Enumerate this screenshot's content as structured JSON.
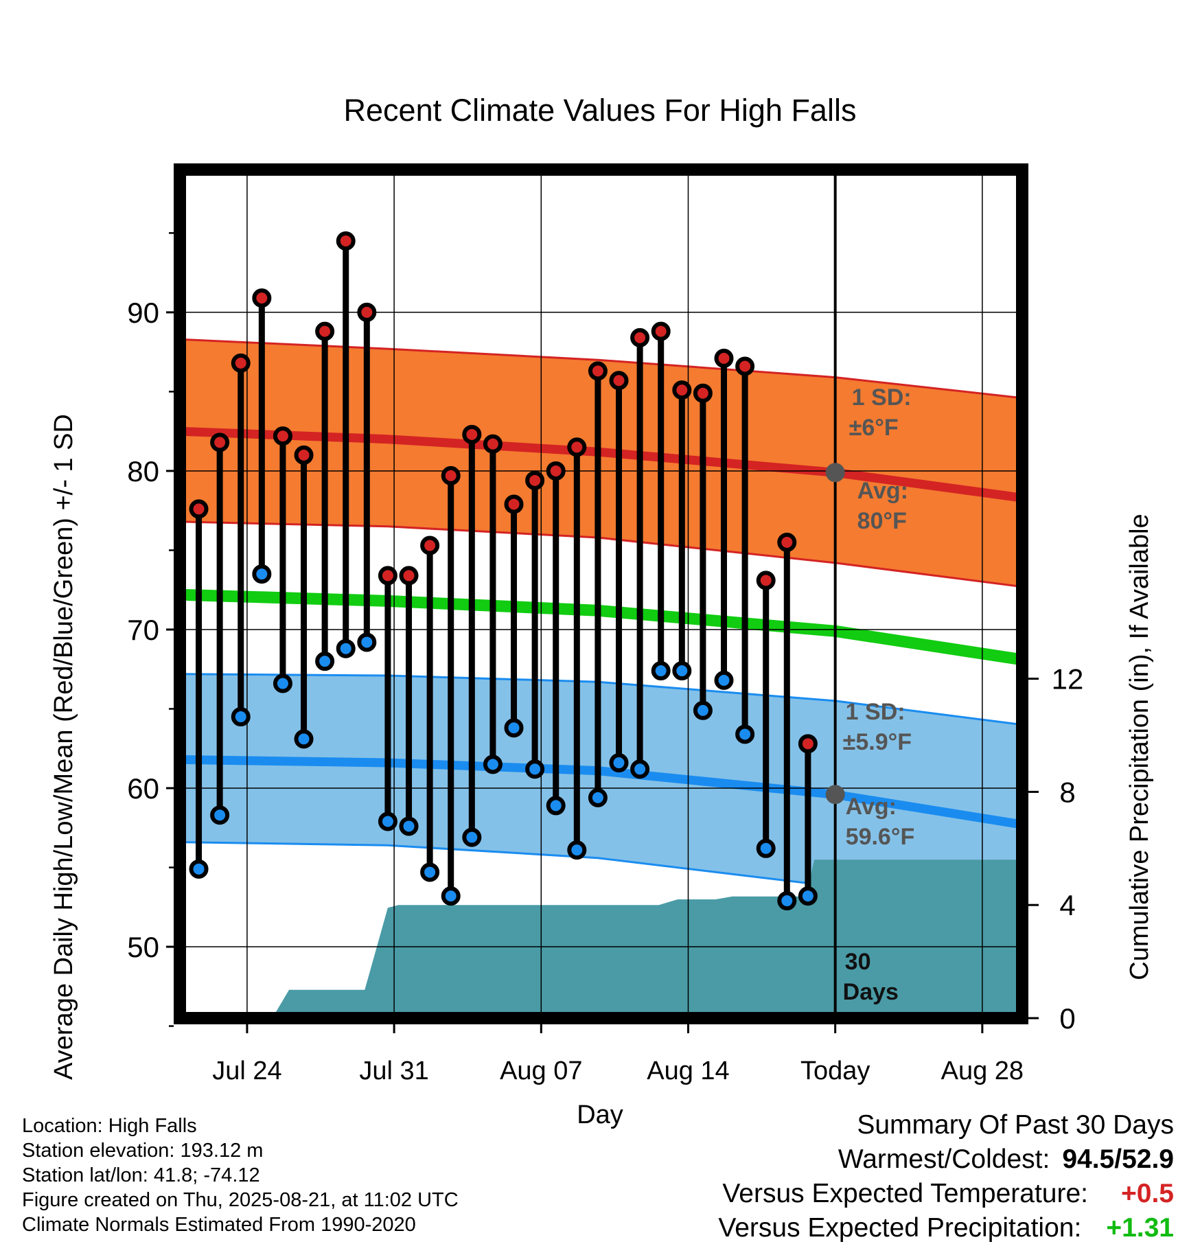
{
  "chart_data": {
    "type": "line",
    "title": "Recent Climate Values For High Falls",
    "xlabel": "Day",
    "ylabel": "Average Daily High/Low/Mean (Red/Blue/Green) +/- 1 SD",
    "y2label": "Cumulative Precipitation (in), If Available",
    "xticks": [
      {
        "day": 24,
        "label": "Jul 24"
      },
      {
        "day": 31,
        "label": "Jul 31"
      },
      {
        "day": 38,
        "label": "Aug 07"
      },
      {
        "day": 45,
        "label": "Aug 14"
      },
      {
        "day": 52,
        "label": "Today"
      },
      {
        "day": 59,
        "label": "Aug 28"
      }
    ],
    "xlim": [
      20.8,
      60.9
    ],
    "ylim": [
      45.5,
      99
    ],
    "yticks": [
      50,
      60,
      70,
      80,
      90
    ],
    "y2lim": [
      0,
      30
    ],
    "y2ticks": [
      0,
      4,
      8,
      12
    ],
    "grid": true,
    "today_day": 52,
    "today_label_line1": "30",
    "today_label_line2": "Days",
    "highs": {
      "x": [
        21.7,
        22.7,
        23.7,
        24.7,
        25.7,
        26.7,
        27.7,
        28.7,
        29.7,
        30.7,
        31.7,
        32.7,
        33.7,
        34.7,
        35.7,
        36.7,
        37.7,
        38.7,
        39.7,
        40.7,
        41.7,
        42.7,
        43.7,
        44.7,
        45.7,
        46.7,
        47.7,
        48.7,
        49.7,
        50.7
      ],
      "values": [
        77.6,
        81.8,
        86.8,
        90.9,
        82.2,
        81.0,
        88.8,
        94.5,
        90.0,
        73.4,
        73.4,
        75.3,
        79.7,
        82.3,
        81.7,
        77.9,
        79.4,
        80.0,
        81.5,
        86.3,
        85.7,
        88.4,
        88.8,
        85.1,
        84.9,
        87.1,
        86.6,
        73.1,
        75.5,
        62.8
      ]
    },
    "lows": {
      "x": [
        21.7,
        22.7,
        23.7,
        24.7,
        25.7,
        26.7,
        27.7,
        28.7,
        29.7,
        30.7,
        31.7,
        32.7,
        33.7,
        34.7,
        35.7,
        36.7,
        37.7,
        38.7,
        39.7,
        40.7,
        41.7,
        42.7,
        43.7,
        44.7,
        45.7,
        46.7,
        47.7,
        48.7,
        49.7,
        50.7
      ],
      "values": [
        54.9,
        58.3,
        64.5,
        73.5,
        66.6,
        63.1,
        68.0,
        68.8,
        69.2,
        57.9,
        57.6,
        54.7,
        53.2,
        56.9,
        61.5,
        63.8,
        61.2,
        58.9,
        56.1,
        59.4,
        61.6,
        61.2,
        67.4,
        67.4,
        64.9,
        66.8,
        63.4,
        56.2,
        52.9,
        53.2
      ]
    },
    "normals": {
      "x": [
        20.8,
        30.7,
        40.7,
        52,
        60.9
      ],
      "high_mean": [
        82.5,
        82.0,
        81.2,
        79.9,
        78.3
      ],
      "high_upper": [
        88.3,
        87.7,
        87.0,
        85.9,
        84.6
      ],
      "high_lower": [
        76.8,
        76.5,
        75.8,
        74.2,
        72.7
      ],
      "mean": [
        72.2,
        71.8,
        71.2,
        69.9,
        68.1
      ],
      "low_mean": [
        61.8,
        61.6,
        61.1,
        59.6,
        57.7
      ],
      "low_upper": [
        67.2,
        67.1,
        66.7,
        65.5,
        64.0
      ],
      "low_lower": [
        56.6,
        56.4,
        55.6,
        53.8,
        51.7
      ]
    },
    "precip": {
      "x": [
        20.8,
        23.4,
        25.2,
        26.0,
        29.6,
        30.7,
        31.2,
        40.8,
        41.2,
        43.6,
        44.5,
        45.1,
        46.3,
        47.1,
        50.6,
        51.0,
        60.9
      ],
      "values": [
        0,
        0,
        0,
        1.0,
        1.0,
        3.9,
        4.0,
        4.0,
        4.0,
        4.0,
        4.2,
        4.2,
        4.2,
        4.3,
        4.3,
        5.6,
        5.6
      ]
    },
    "annotations": {
      "high_sd_label": "1 SD:",
      "high_sd_value": "±6°F",
      "high_avg_label": "Avg:",
      "high_avg_value": "80°F",
      "high_avg": 79.9,
      "low_sd_label": "1 SD:",
      "low_sd_value": "±5.9°F",
      "low_avg_label": "Avg:",
      "low_avg_value": "59.6°F",
      "low_avg": 59.6
    },
    "colors": {
      "high_band": "#f47b30",
      "high_line": "#d42323",
      "mean_line": "#11cc11",
      "low_band": "#84c1e8",
      "low_line": "#1a8cf0",
      "precip": "#4a9ba6",
      "high_marker": "#d42323",
      "low_marker": "#1a8cf0"
    }
  },
  "info": {
    "location": "Location: High Falls",
    "elevation": "Station elevation: 193.12 m",
    "latlon": "Station lat/lon: 41.8; -74.12",
    "created": "Figure created on Thu, 2025-08-21, at 11:02 UTC",
    "normals": "Climate Normals Estimated From 1990-2020"
  },
  "summary": {
    "title": "Summary Of Past 30 Days",
    "warm_cold_label": "Warmest/Coldest:",
    "warm_cold_value": "94.5/52.9",
    "temp_label": "Versus Expected Temperature:",
    "temp_value": "+0.5",
    "temp_color": "#d42323",
    "precip_label": "Versus Expected Precipitation:",
    "precip_value": "+1.31",
    "precip_color": "#11bb11"
  }
}
